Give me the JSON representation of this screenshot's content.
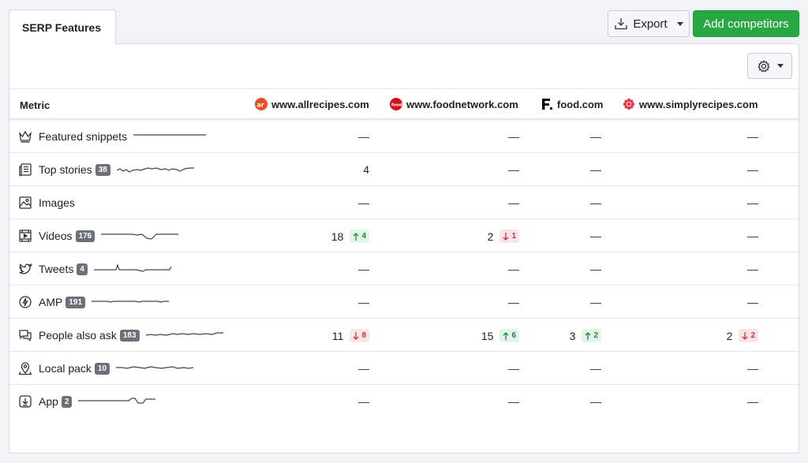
{
  "tab_label": "SERP Features",
  "toolbar": {
    "export_label": "Export",
    "add_competitors_label": "Add competitors"
  },
  "table": {
    "metric_header": "Metric",
    "competitors": [
      {
        "domain": "www.allrecipes.com",
        "color": "#ef4e23",
        "icon": "allrecipes-logo-icon"
      },
      {
        "domain": "www.foodnetwork.com",
        "color": "#d0141c",
        "icon": "foodnetwork-logo-icon"
      },
      {
        "domain": "food.com",
        "color": "#111111",
        "icon": "food-com-logo-icon"
      },
      {
        "domain": "www.simplyrecipes.com",
        "color": "#e8364a",
        "icon": "simplyrecipes-logo-icon"
      }
    ],
    "rows": [
      {
        "name": "Featured snippets",
        "icon": "crown-icon",
        "count": null,
        "cells": [
          {
            "value": "—"
          },
          {
            "value": "—"
          },
          {
            "value": "—"
          },
          {
            "value": "—"
          }
        ]
      },
      {
        "name": "Top stories",
        "icon": "newspaper-icon",
        "count": "38",
        "cells": [
          {
            "value": "4"
          },
          {
            "value": "—"
          },
          {
            "value": "—"
          },
          {
            "value": "—"
          }
        ]
      },
      {
        "name": "Images",
        "icon": "image-icon",
        "count": null,
        "cells": [
          {
            "value": "—"
          },
          {
            "value": "—"
          },
          {
            "value": "—"
          },
          {
            "value": "—"
          }
        ]
      },
      {
        "name": "Videos",
        "icon": "video-icon",
        "count": "176",
        "cells": [
          {
            "value": "18",
            "change": "4",
            "dir": "up"
          },
          {
            "value": "2",
            "change": "1",
            "dir": "down"
          },
          {
            "value": "—"
          },
          {
            "value": "—"
          }
        ]
      },
      {
        "name": "Tweets",
        "icon": "twitter-icon",
        "count": "4",
        "cells": [
          {
            "value": "—"
          },
          {
            "value": "—"
          },
          {
            "value": "—"
          },
          {
            "value": "—"
          }
        ]
      },
      {
        "name": "AMP",
        "icon": "amp-lightning-icon",
        "count": "191",
        "cells": [
          {
            "value": "—"
          },
          {
            "value": "—"
          },
          {
            "value": "—"
          },
          {
            "value": "—"
          }
        ]
      },
      {
        "name": "People also ask",
        "icon": "chat-question-icon",
        "count": "183",
        "cells": [
          {
            "value": "11",
            "change": "8",
            "dir": "down"
          },
          {
            "value": "15",
            "change": "6",
            "dir": "up"
          },
          {
            "value": "3",
            "change": "2",
            "dir": "up"
          },
          {
            "value": "2",
            "change": "2",
            "dir": "down"
          }
        ]
      },
      {
        "name": "Local pack",
        "icon": "map-pin-icon",
        "count": "10",
        "cells": [
          {
            "value": "—"
          },
          {
            "value": "—"
          },
          {
            "value": "—"
          },
          {
            "value": "—"
          }
        ]
      },
      {
        "name": "App",
        "icon": "app-download-icon",
        "count": "2",
        "cells": [
          {
            "value": "—"
          },
          {
            "value": "—"
          },
          {
            "value": "—"
          },
          {
            "value": "—"
          }
        ]
      }
    ]
  }
}
